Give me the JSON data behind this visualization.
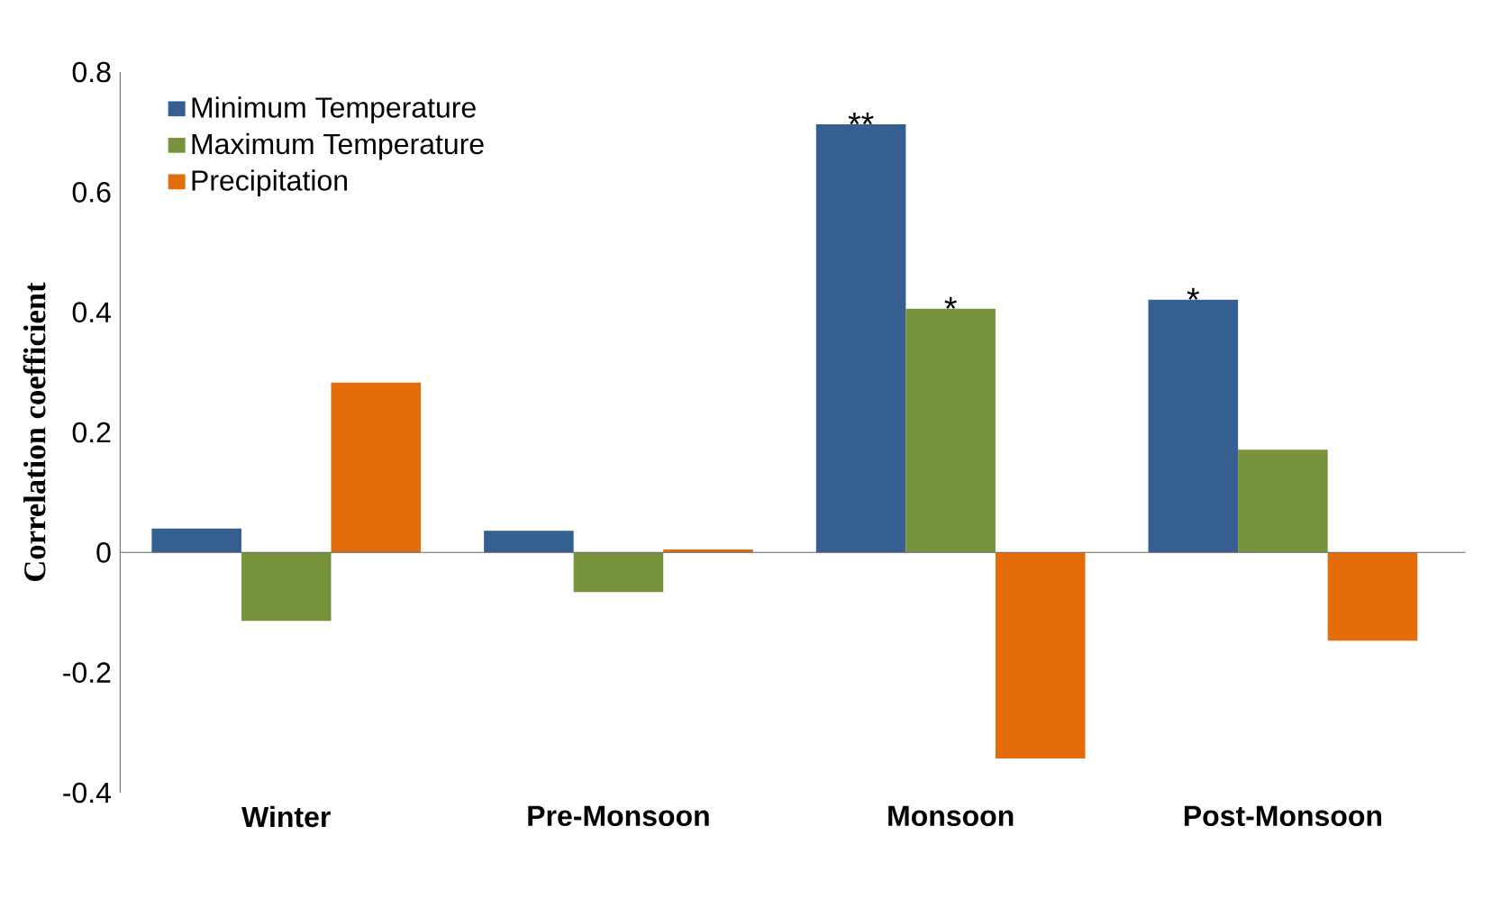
{
  "chart_data": {
    "type": "bar",
    "ylabel": "Correlation coefficient",
    "categories": [
      "Winter",
      "Pre-Monsoon",
      "Monsoon",
      "Post-Monsoon"
    ],
    "series": [
      {
        "name": "Minimum Temperature",
        "color": "#355e91",
        "values": [
          0.04,
          0.036,
          0.713,
          0.421
        ],
        "value_labels": [
          null,
          null,
          "**",
          "*"
        ]
      },
      {
        "name": "Maximum Temperature",
        "color": "#77933c",
        "values": [
          -0.114,
          -0.066,
          0.406,
          0.171
        ],
        "value_labels": [
          null,
          null,
          "*",
          null
        ]
      },
      {
        "name": "Precipitation",
        "color": "#e46c0a",
        "values": [
          0.283,
          0.005,
          -0.343,
          -0.147
        ]
      }
    ],
    "ylim": [
      -0.4,
      0.8
    ],
    "yticks": [
      -0.4,
      -0.2,
      0,
      0.2,
      0.4,
      0.6,
      0.8
    ],
    "legend": "top left"
  }
}
